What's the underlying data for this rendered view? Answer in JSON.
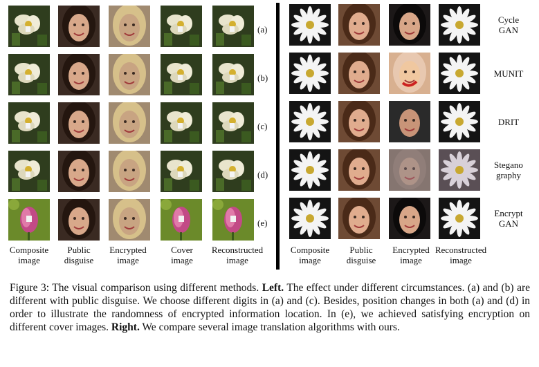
{
  "figure": {
    "left": {
      "rows": [
        {
          "label": "(a)",
          "cells": [
            "flower-white",
            "face-dark",
            "face-blonde",
            "flower-white",
            "flower-white"
          ]
        },
        {
          "label": "(b)",
          "cells": [
            "flower-white",
            "face-dark",
            "face-blonde",
            "flower-white",
            "flower-white"
          ]
        },
        {
          "label": "(c)",
          "cells": [
            "flower-white",
            "face-dark",
            "face-blonde",
            "flower-white",
            "flower-white"
          ]
        },
        {
          "label": "(d)",
          "cells": [
            "flower-white",
            "face-dark",
            "face-blonde",
            "flower-white",
            "flower-white"
          ]
        },
        {
          "label": "(e)",
          "cells": [
            "flower-pink",
            "face-dark",
            "face-blonde",
            "flower-pink",
            "flower-pink"
          ]
        }
      ],
      "columns": [
        "Composite\nimage",
        "Public\ndisguise",
        "Encrypted\nimage",
        "Cover\nimage",
        "Reconstructed\nimage"
      ]
    },
    "right": {
      "rows": [
        {
          "method": "Cycle\nGAN",
          "cells": [
            "daisy",
            "face-brown",
            "face-black",
            "daisy"
          ]
        },
        {
          "method": "MUNIT",
          "cells": [
            "daisy",
            "face-brown",
            "face-distorted",
            "daisy"
          ]
        },
        {
          "method": "DRIT",
          "cells": [
            "daisy",
            "face-brown",
            "face-blob",
            "daisy"
          ]
        },
        {
          "method": "Stegano\ngraphy",
          "cells": [
            "daisy",
            "face-brown",
            "face-noisy",
            "daisy-faded"
          ]
        },
        {
          "method": "Encrypt\nGAN",
          "cells": [
            "daisy",
            "face-brown",
            "face-black",
            "daisy"
          ]
        }
      ],
      "columns": [
        "Composite\nimage",
        "Public\ndisguise",
        "Encrypted\nimage",
        "Reconstructed\nimage"
      ]
    },
    "caption": {
      "title": "Figure 3: The visual comparison using different methods. ",
      "left_label": "Left.",
      "left_text": " The effect under different circumstances. (a) and (b) are different with public disguise. We choose different digits in (a) and (c). Besides, position changes in both (a) and (d) in order to illustrate the randomness of encrypted information location. In (e), we achieved satisfying encryption on different cover images. ",
      "right_label": "Right.",
      "right_text": " We compare several image translation algorithms with ours."
    }
  }
}
